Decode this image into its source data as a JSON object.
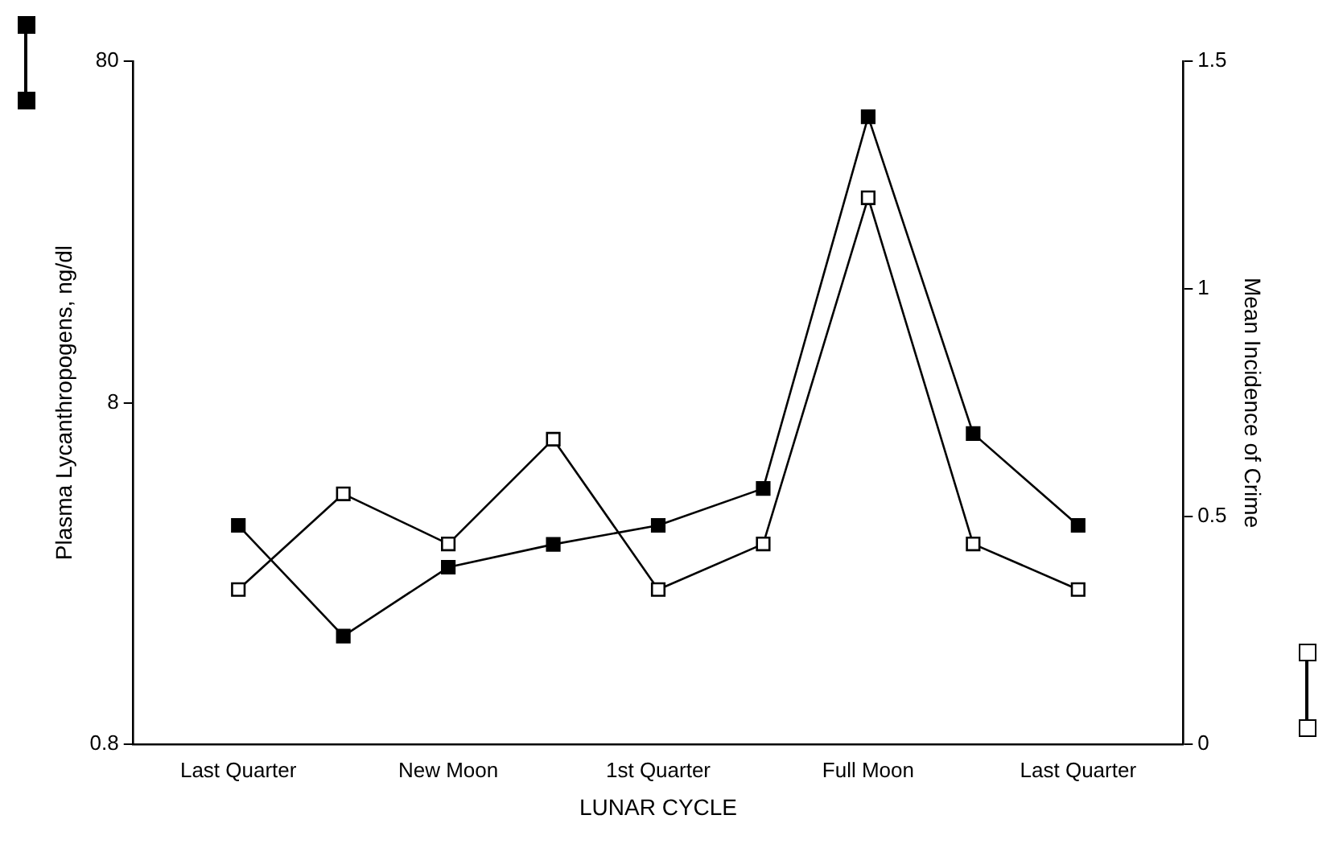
{
  "chart_data": {
    "type": "line",
    "xlabel": "LUNAR CYCLE",
    "ylabel": "Plasma Lycanthropogens, ng/dl",
    "y2label": "Mean Incidence of Crime",
    "categories": [
      "Last Quarter",
      null,
      "New Moon",
      null,
      "1st Quarter",
      null,
      "Full Moon",
      null,
      "Last Quarter"
    ],
    "series": [
      {
        "color": "#000000",
        "values": [
          3.5,
          1.66,
          2.64,
          3.08,
          3.5,
          4.49,
          55,
          6.5,
          3.5
        ]
      },
      {
        "color": "#000000",
        "axis": "y2",
        "values": [
          0.34,
          0.55,
          0.44,
          0.67,
          0.34,
          0.44,
          1.2,
          0.44,
          0.34
        ]
      }
    ],
    "log": "y",
    "ylim": [
      0.8,
      80
    ],
    "yticks": [
      0.8,
      8,
      80
    ],
    "y2lim": [
      0,
      1.5
    ],
    "y2ticks": [
      0,
      0.5,
      1,
      1.5
    ],
    "marker": "square",
    "line_style": "solid",
    "grid": false,
    "legend": false
  }
}
